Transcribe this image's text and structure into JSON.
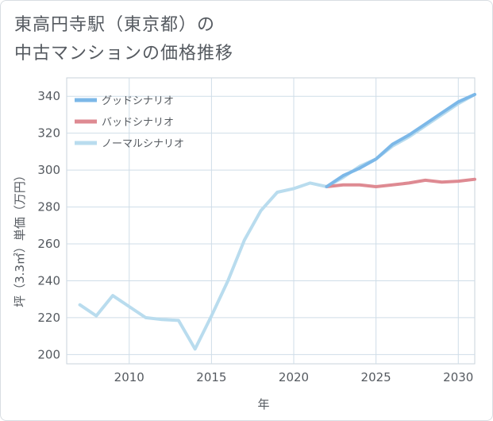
{
  "title": {
    "line1": "東高円寺駅（東京都）の",
    "line2": "中古マンションの価格推移"
  },
  "colors": {
    "good": "#7cb8e8",
    "bad": "#de8a92",
    "normal": "#b9dcee",
    "grid": "#cfdde8",
    "text": "#555a60"
  },
  "chart_data": {
    "type": "line",
    "xlabel": "年",
    "ylabel": "坪（3.3㎡）単価（万円）",
    "xlim": [
      2006.2,
      2031
    ],
    "ylim": [
      195,
      350
    ],
    "xticks": [
      2010,
      2015,
      2020,
      2025,
      2030
    ],
    "yticks": [
      200,
      220,
      240,
      260,
      280,
      300,
      320,
      340
    ],
    "grid": true,
    "legend_position": "top-left",
    "series": [
      {
        "name": "グッドシナリオ",
        "color": "#7cb8e8",
        "x": [
          2022,
          2023,
          2024,
          2025,
          2026,
          2027,
          2028,
          2029,
          2030,
          2031
        ],
        "y": [
          291,
          297,
          301,
          306,
          314,
          319,
          325,
          331,
          337,
          341
        ]
      },
      {
        "name": "バッドシナリオ",
        "color": "#de8a92",
        "x": [
          2022,
          2023,
          2024,
          2025,
          2026,
          2027,
          2028,
          2029,
          2030,
          2031
        ],
        "y": [
          291,
          292,
          292,
          291,
          292,
          293,
          294.5,
          293.5,
          294,
          295
        ]
      },
      {
        "name": "ノーマルシナリオ",
        "color": "#b9dcee",
        "x": [
          2007,
          2008,
          2009,
          2010,
          2011,
          2012,
          2013,
          2014,
          2015,
          2016,
          2017,
          2018,
          2019,
          2020,
          2021,
          2022,
          2023,
          2024,
          2025,
          2026,
          2027,
          2028,
          2029,
          2030,
          2031
        ],
        "y": [
          227,
          221,
          232,
          226,
          220,
          219,
          218.5,
          203,
          221,
          240,
          262,
          278,
          288,
          290,
          293,
          291,
          296,
          302,
          306,
          313,
          318,
          324,
          330,
          336,
          341
        ]
      }
    ]
  }
}
